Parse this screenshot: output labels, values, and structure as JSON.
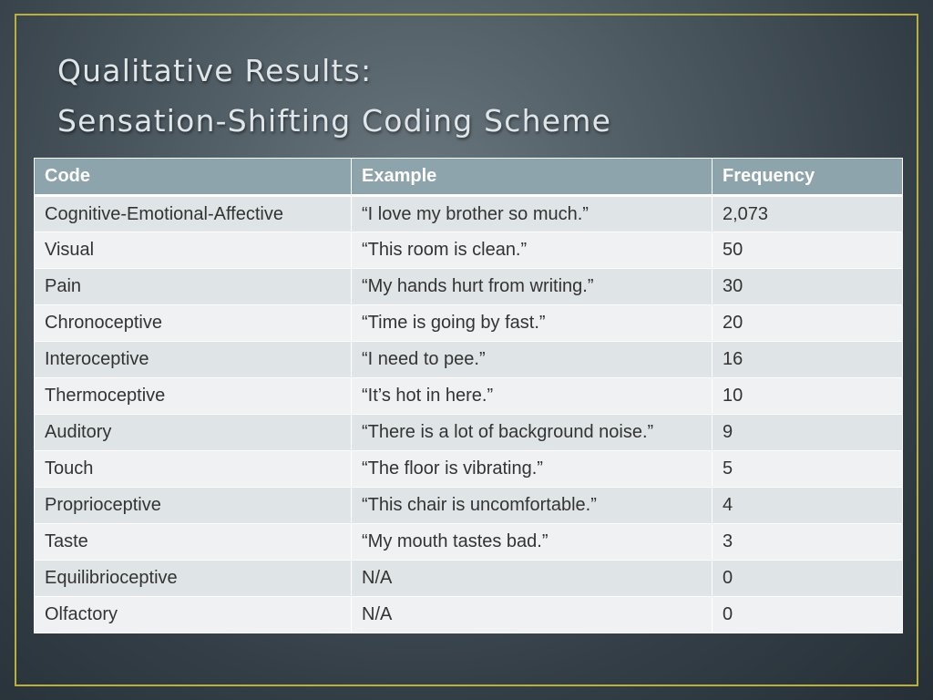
{
  "slide": {
    "title_line1": "Qualitative Results:",
    "title_line2": "Sensation-Shifting Coding Scheme"
  },
  "table": {
    "headers": [
      "Code",
      "Example",
      "Frequency"
    ],
    "rows": [
      [
        "Cognitive-Emotional-Affective",
        "“I love my brother so much.”",
        "2,073"
      ],
      [
        "Visual",
        "“This room is clean.”",
        "50"
      ],
      [
        "Pain",
        "“My hands hurt from writing.”",
        "30"
      ],
      [
        "Chronoceptive",
        "“Time is going by fast.”",
        "20"
      ],
      [
        "Interoceptive",
        "“I need to pee.”",
        "16"
      ],
      [
        "Thermoceptive",
        "“It’s hot in here.”",
        "10"
      ],
      [
        "Auditory",
        "“There is a lot of background noise.”",
        "9"
      ],
      [
        "Touch",
        "“The floor is vibrating.”",
        "5"
      ],
      [
        "Proprioceptive",
        "“This chair is uncomfortable.”",
        "4"
      ],
      [
        "Taste",
        "“My mouth tastes bad.”",
        "3"
      ],
      [
        "Equilibrioceptive",
        "N/A",
        "0"
      ],
      [
        "Olfactory",
        "N/A",
        "0"
      ]
    ]
  },
  "colors": {
    "frame_border": "#b9b13c",
    "header_fill": "#8ea4ac",
    "row_odd": "#dfe4e6",
    "row_even": "#eff1f2",
    "title_text": "#dfe6ea"
  }
}
